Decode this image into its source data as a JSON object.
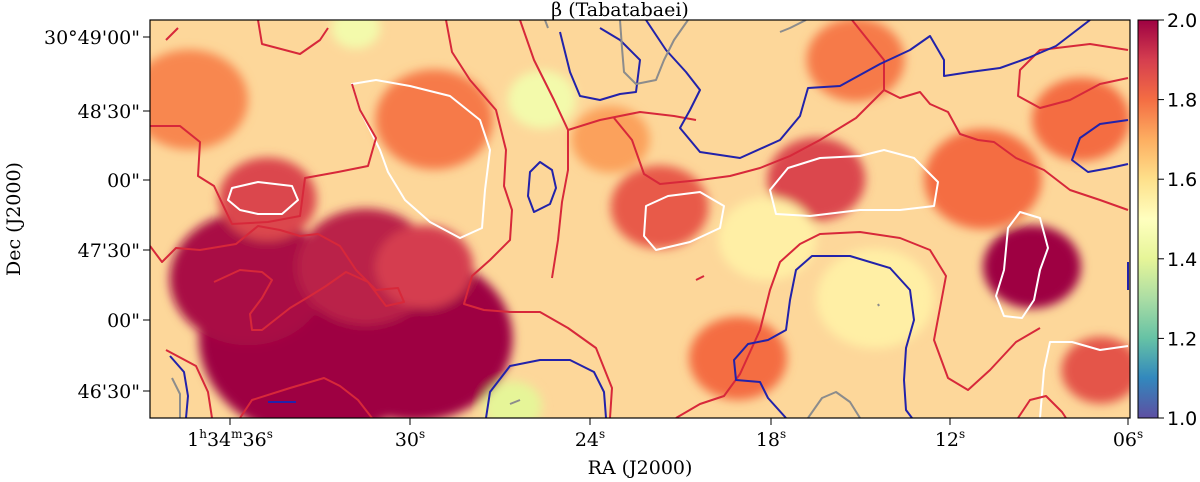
{
  "chart_data": {
    "type": "heatmap",
    "title": "β (Tabatabaei)",
    "xlabel": "RA (J2000)",
    "ylabel": "Dec (J2000)",
    "colormap": "Spectral_r",
    "vmin": 1.0,
    "vmax": 2.0,
    "colorbar_ticks": [
      "1.0",
      "1.2",
      "1.4",
      "1.6",
      "1.8",
      "2.0"
    ],
    "x_ticks": [
      {
        "h": "1",
        "m": "34",
        "s": "36",
        "full": true
      },
      {
        "s": "30"
      },
      {
        "s": "24"
      },
      {
        "s": "18"
      },
      {
        "s": "12"
      },
      {
        "s": "06"
      }
    ],
    "y_ticks": [
      "30°49'00\"",
      "48'30\"",
      "00\"",
      "47'30\"",
      "00\"",
      "46'30\""
    ],
    "contour_colors": {
      "white": "#ffffff",
      "red": "#d7283a",
      "blue": "#2222aa",
      "gray": "#8c8c8c"
    },
    "hotspots": [
      {
        "x": 0.17,
        "y": 0.8,
        "v": 2.0,
        "r": 0.12
      },
      {
        "x": 0.27,
        "y": 0.8,
        "v": 2.0,
        "r": 0.1
      },
      {
        "x": 0.1,
        "y": 0.65,
        "v": 1.98,
        "r": 0.08
      },
      {
        "x": 0.22,
        "y": 0.62,
        "v": 1.95,
        "r": 0.07
      },
      {
        "x": 0.28,
        "y": 0.62,
        "v": 1.9,
        "r": 0.05
      },
      {
        "x": 0.12,
        "y": 0.45,
        "v": 1.88,
        "r": 0.05
      },
      {
        "x": 0.9,
        "y": 0.62,
        "v": 2.0,
        "r": 0.05
      },
      {
        "x": 0.68,
        "y": 0.4,
        "v": 1.88,
        "r": 0.05
      },
      {
        "x": 0.52,
        "y": 0.47,
        "v": 1.84,
        "r": 0.05
      },
      {
        "x": 0.29,
        "y": 0.25,
        "v": 1.78,
        "r": 0.06
      },
      {
        "x": 0.85,
        "y": 0.4,
        "v": 1.8,
        "r": 0.06
      },
      {
        "x": 0.95,
        "y": 0.25,
        "v": 1.8,
        "r": 0.05
      },
      {
        "x": 0.72,
        "y": 0.1,
        "v": 1.78,
        "r": 0.05
      },
      {
        "x": 0.6,
        "y": 0.85,
        "v": 1.8,
        "r": 0.05
      },
      {
        "x": 0.97,
        "y": 0.88,
        "v": 1.85,
        "r": 0.04
      },
      {
        "x": 0.04,
        "y": 0.2,
        "v": 1.76,
        "r": 0.06
      },
      {
        "x": 0.47,
        "y": 0.3,
        "v": 1.72,
        "r": 0.04
      },
      {
        "x": 0.4,
        "y": 0.2,
        "v": 1.45,
        "r": 0.035
      },
      {
        "x": 0.37,
        "y": 0.97,
        "v": 1.4,
        "r": 0.03
      },
      {
        "x": 0.63,
        "y": 0.55,
        "v": 1.55,
        "r": 0.05
      },
      {
        "x": 0.74,
        "y": 0.7,
        "v": 1.55,
        "r": 0.06
      },
      {
        "x": 0.21,
        "y": 0.02,
        "v": 1.45,
        "r": 0.025
      }
    ]
  }
}
